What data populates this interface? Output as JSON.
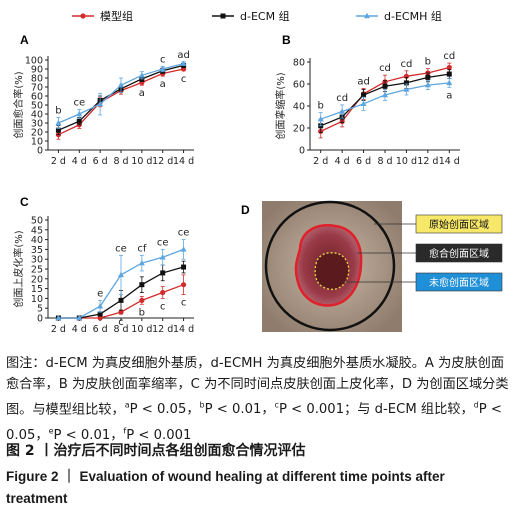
{
  "legend": [
    {
      "label": "模型组",
      "color": "#d32b2b",
      "marker": "circle"
    },
    {
      "label": "d-ECM 组",
      "color": "#111111",
      "marker": "square"
    },
    {
      "label": "d-ECMH 组",
      "color": "#5ea6e0",
      "marker": "triangle"
    }
  ],
  "chart_data": [
    {
      "panel": "A",
      "type": "line",
      "ylabel": "创面愈合率(%)",
      "x": [
        "2 d",
        "4 d",
        "6 d",
        "8 d",
        "10 d",
        "12 d",
        "14 d"
      ],
      "ylim": [
        0,
        100
      ],
      "yticks": [
        0,
        10,
        20,
        30,
        40,
        50,
        60,
        70,
        80,
        90,
        100
      ],
      "series": [
        {
          "name": "模型组",
          "values": [
            17,
            28,
            53,
            66,
            75,
            85,
            90
          ],
          "err": [
            5,
            4,
            5,
            4,
            3,
            3,
            2
          ]
        },
        {
          "name": "d-ECM 组",
          "values": [
            22,
            32,
            55,
            68,
            79,
            88,
            94
          ],
          "err": [
            5,
            4,
            5,
            4,
            3,
            3,
            2
          ]
        },
        {
          "name": "d-ECMH 组",
          "values": [
            30,
            40,
            51,
            72,
            83,
            90,
            96
          ],
          "err": [
            6,
            5,
            12,
            8,
            4,
            3,
            2
          ]
        }
      ],
      "annotations": [
        {
          "x": "2 d",
          "text": "b"
        },
        {
          "x": "4 d",
          "text": "ce"
        },
        {
          "x": "10 d",
          "text": "a",
          "below": true
        },
        {
          "x": "12 d",
          "text": "c"
        },
        {
          "x": "12 d",
          "text": "a",
          "below": true
        },
        {
          "x": "14 d",
          "text": "ad"
        },
        {
          "x": "14 d",
          "text": "c",
          "below": true
        }
      ]
    },
    {
      "panel": "B",
      "type": "line",
      "ylabel": "创面挛缩率(%)",
      "x": [
        "2 d",
        "4 d",
        "6 d",
        "8 d",
        "10 d",
        "12 d",
        "14 d"
      ],
      "ylim": [
        0,
        80
      ],
      "yticks": [
        0,
        20,
        40,
        60,
        80
      ],
      "series": [
        {
          "name": "模型组",
          "values": [
            17,
            26,
            51,
            62,
            67,
            70,
            75
          ],
          "err": [
            6,
            5,
            5,
            6,
            5,
            4,
            4
          ]
        },
        {
          "name": "d-ECM 组",
          "values": [
            22,
            30,
            50,
            58,
            61,
            66,
            69
          ],
          "err": [
            6,
            5,
            5,
            5,
            5,
            4,
            4
          ]
        },
        {
          "name": "d-ECMH 组",
          "values": [
            28,
            35,
            42,
            50,
            55,
            59,
            61
          ],
          "err": [
            6,
            6,
            6,
            5,
            5,
            4,
            4
          ]
        }
      ],
      "annotations": [
        {
          "x": "2 d",
          "text": "b"
        },
        {
          "x": "4 d",
          "text": "cd"
        },
        {
          "x": "6 d",
          "text": "ad"
        },
        {
          "x": "8 d",
          "text": "cd"
        },
        {
          "x": "10 d",
          "text": "cd"
        },
        {
          "x": "12 d",
          "text": "b"
        },
        {
          "x": "14 d",
          "text": "cd"
        },
        {
          "x": "14 d",
          "text": "a",
          "below": true
        }
      ]
    },
    {
      "panel": "C",
      "type": "line",
      "ylabel": "创面上皮化率(%)",
      "x": [
        "2 d",
        "4 d",
        "6 d",
        "8 d",
        "10 d",
        "12 d",
        "14 d"
      ],
      "ylim": [
        0,
        50
      ],
      "yticks": [
        0,
        5,
        10,
        15,
        20,
        25,
        30,
        35,
        40,
        45,
        50
      ],
      "series": [
        {
          "name": "模型组",
          "values": [
            0,
            0,
            0,
            3,
            9,
            13,
            17
          ],
          "err": [
            0,
            0,
            0,
            1,
            2,
            3,
            5
          ]
        },
        {
          "name": "d-ECM 组",
          "values": [
            0,
            0,
            2,
            9,
            17,
            23,
            26
          ],
          "err": [
            0,
            0,
            1,
            5,
            4,
            4,
            3
          ]
        },
        {
          "name": "d-ECMH 组",
          "values": [
            0,
            0,
            6,
            22,
            28,
            31,
            35
          ],
          "err": [
            0,
            0,
            3,
            10,
            4,
            4,
            5
          ]
        }
      ],
      "annotations": [
        {
          "x": "6 d",
          "text": "e"
        },
        {
          "x": "8 d",
          "text": "ce"
        },
        {
          "x": "8 d",
          "text": "c",
          "below": true
        },
        {
          "x": "10 d",
          "text": "cf"
        },
        {
          "x": "10 d",
          "text": "b",
          "below": true
        },
        {
          "x": "12 d",
          "text": "ce"
        },
        {
          "x": "12 d",
          "text": "c",
          "below": true
        },
        {
          "x": "14 d",
          "text": "ce"
        },
        {
          "x": "14 d",
          "text": "c",
          "below": true
        }
      ]
    }
  ],
  "panel_d": {
    "label": "D",
    "regions": [
      {
        "label": "原始创面区域",
        "box_color": "#f7e86a",
        "text_color": "#111111"
      },
      {
        "label": "愈合创面区域",
        "box_color": "#2a2a2a",
        "text_color": "#ffffff"
      },
      {
        "label": "未愈创面区域",
        "box_color": "#1f8fd8",
        "text_color": "#ffffff"
      }
    ]
  },
  "caption": {
    "note": "图注：d-ECM 为真皮细胞外基质，d-ECMH 为真皮细胞外基质水凝胶。A 为皮肤创面愈合率，B 为皮肤创面挛缩率，C 为不同时间点皮肤创面上皮化率，D 为创面区域分类图。与模型组比较，",
    "p_values": [
      {
        "sup": "a",
        "text": "P < 0.05，"
      },
      {
        "sup": "b",
        "text": "P < 0.01，"
      },
      {
        "sup": "c",
        "text": "P < 0.001；与 d-ECM 组比较，"
      },
      {
        "sup": "d",
        "text": "P < 0.05，"
      },
      {
        "sup": "e",
        "text": "P < 0.01，"
      },
      {
        "sup": "f",
        "text": "P < 0.001"
      }
    ],
    "title_cn": "图 2 丨治疗后不同时间点各组创面愈合情况评估",
    "title_en": "Figure 2 ｜ Evaluation of wound healing at different time points after treatment"
  }
}
